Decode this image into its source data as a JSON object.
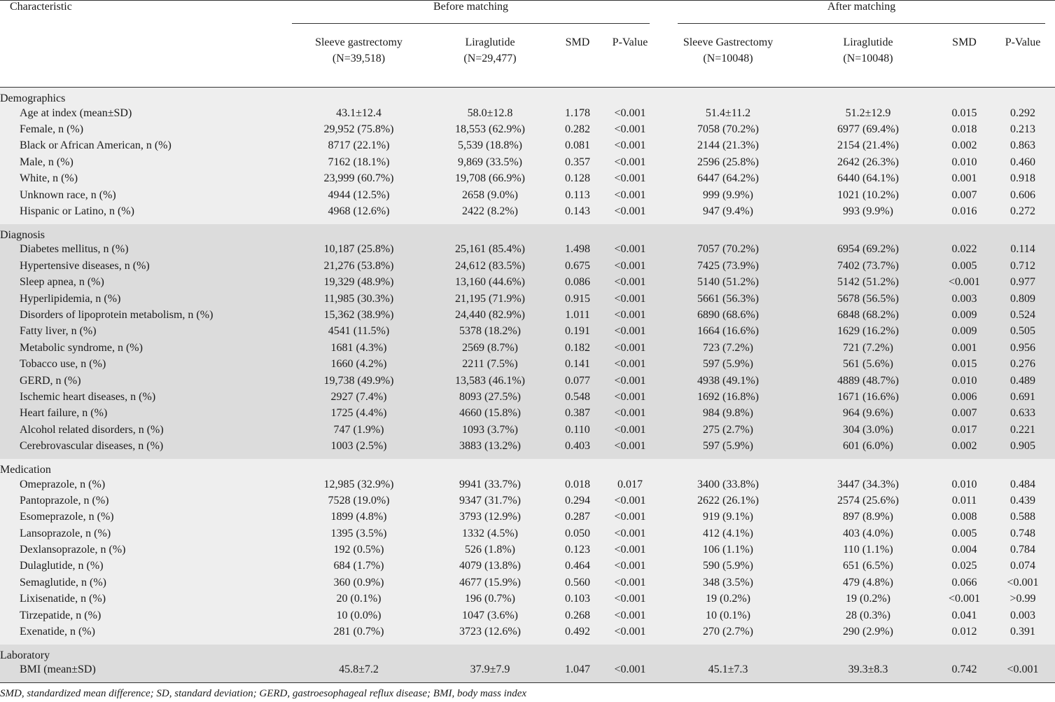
{
  "header": {
    "characteristic": "Characteristic",
    "group_before": "Before matching",
    "group_after": "After matching",
    "columns": [
      {
        "line1": "Sleeve gastrectomy",
        "line2": "(N=39,518)"
      },
      {
        "line1": "Liraglutide",
        "line2": "(N=29,477)"
      },
      {
        "line1": "SMD",
        "line2": ""
      },
      {
        "line1": "P-Value",
        "line2": ""
      },
      {
        "line1": "Sleeve Gastrectomy",
        "line2": "(N=10048)"
      },
      {
        "line1": "Liraglutide",
        "line2": "(N=10048)"
      },
      {
        "line1": "SMD",
        "line2": ""
      },
      {
        "line1": "P-Value",
        "line2": ""
      }
    ]
  },
  "sections": [
    {
      "title": "Demographics",
      "shade": "a",
      "rows": [
        {
          "label": "Age at index (mean±SD)",
          "cells": [
            "43.1±12.4",
            "58.0±12.8",
            "1.178",
            "<0.001",
            "51.4±11.2",
            "51.2±12.9",
            "0.015",
            "0.292"
          ]
        },
        {
          "label": "Female, n (%)",
          "cells": [
            "29,952 (75.8%)",
            "18,553 (62.9%)",
            "0.282",
            "<0.001",
            "7058 (70.2%)",
            "6977 (69.4%)",
            "0.018",
            "0.213"
          ]
        },
        {
          "label": "Black or African American, n (%)",
          "cells": [
            "8717 (22.1%)",
            "5,539 (18.8%)",
            "0.081",
            "<0.001",
            "2144 (21.3%)",
            "2154 (21.4%)",
            "0.002",
            "0.863"
          ]
        },
        {
          "label": "Male, n (%)",
          "cells": [
            "7162 (18.1%)",
            "9,869 (33.5%)",
            "0.357",
            "<0.001",
            "2596 (25.8%)",
            "2642 (26.3%)",
            "0.010",
            "0.460"
          ]
        },
        {
          "label": "White, n (%)",
          "cells": [
            "23,999 (60.7%)",
            "19,708 (66.9%)",
            "0.128",
            "<0.001",
            "6447 (64.2%)",
            "6440 (64.1%)",
            "0.001",
            "0.918"
          ]
        },
        {
          "label": "Unknown race, n (%)",
          "cells": [
            "4944 (12.5%)",
            "2658 (9.0%)",
            "0.113",
            "<0.001",
            "999 (9.9%)",
            "1021 (10.2%)",
            "0.007",
            "0.606"
          ]
        },
        {
          "label": "Hispanic or Latino, n (%)",
          "cells": [
            "4968 (12.6%)",
            "2422 (8.2%)",
            "0.143",
            "<0.001",
            "947 (9.4%)",
            "993 (9.9%)",
            "0.016",
            "0.272"
          ]
        }
      ]
    },
    {
      "title": "Diagnosis",
      "shade": "b",
      "rows": [
        {
          "label": "Diabetes mellitus, n (%)",
          "cells": [
            "10,187 (25.8%)",
            "25,161 (85.4%)",
            "1.498",
            "<0.001",
            "7057 (70.2%)",
            "6954 (69.2%)",
            "0.022",
            "0.114"
          ]
        },
        {
          "label": "Hypertensive diseases, n (%)",
          "cells": [
            "21,276 (53.8%)",
            "24,612 (83.5%)",
            "0.675",
            "<0.001",
            "7425 (73.9%)",
            "7402 (73.7%)",
            "0.005",
            "0.712"
          ]
        },
        {
          "label": "Sleep apnea, n (%)",
          "cells": [
            "19,329 (48.9%)",
            "13,160 (44.6%)",
            "0.086",
            "<0.001",
            "5140 (51.2%)",
            "5142 (51.2%)",
            "<0.001",
            "0.977"
          ]
        },
        {
          "label": "Hyperlipidemia, n (%)",
          "cells": [
            "11,985 (30.3%)",
            "21,195 (71.9%)",
            "0.915",
            "<0.001",
            "5661 (56.3%)",
            "5678 (56.5%)",
            "0.003",
            "0.809"
          ]
        },
        {
          "label": "Disorders of lipoprotein metabolism, n (%)",
          "cells": [
            "15,362 (38.9%)",
            "24,440 (82.9%)",
            "1.011",
            "<0.001",
            "6890 (68.6%)",
            "6848 (68.2%)",
            "0.009",
            "0.524"
          ]
        },
        {
          "label": "Fatty liver, n (%)",
          "cells": [
            "4541 (11.5%)",
            "5378 (18.2%)",
            "0.191",
            "<0.001",
            "1664 (16.6%)",
            "1629 (16.2%)",
            "0.009",
            "0.505"
          ]
        },
        {
          "label": "Metabolic syndrome, n (%)",
          "cells": [
            "1681 (4.3%)",
            "2569 (8.7%)",
            "0.182",
            "<0.001",
            "723 (7.2%)",
            "721 (7.2%)",
            "0.001",
            "0.956"
          ]
        },
        {
          "label": "Tobacco use, n (%)",
          "cells": [
            "1660 (4.2%)",
            "2211 (7.5%)",
            "0.141",
            "<0.001",
            "597 (5.9%)",
            "561 (5.6%)",
            "0.015",
            "0.276"
          ]
        },
        {
          "label": "GERD, n (%)",
          "cells": [
            "19,738 (49.9%)",
            "13,583 (46.1%)",
            "0.077",
            "<0.001",
            "4938 (49.1%)",
            "4889 (48.7%)",
            "0.010",
            "0.489"
          ]
        },
        {
          "label": "Ischemic heart diseases, n (%)",
          "cells": [
            "2927 (7.4%)",
            "8093 (27.5%)",
            "0.548",
            "<0.001",
            "1692 (16.8%)",
            "1671 (16.6%)",
            "0.006",
            "0.691"
          ]
        },
        {
          "label": "Heart failure, n (%)",
          "cells": [
            "1725 (4.4%)",
            "4660 (15.8%)",
            "0.387",
            "<0.001",
            "984 (9.8%)",
            "964 (9.6%)",
            "0.007",
            "0.633"
          ]
        },
        {
          "label": "Alcohol related disorders, n (%)",
          "cells": [
            "747 (1.9%)",
            "1093 (3.7%)",
            "0.110",
            "<0.001",
            "275 (2.7%)",
            "304 (3.0%)",
            "0.017",
            "0.221"
          ]
        },
        {
          "label": "Cerebrovascular diseases, n (%)",
          "cells": [
            "1003 (2.5%)",
            "3883 (13.2%)",
            "0.403",
            "<0.001",
            "597 (5.9%)",
            "601 (6.0%)",
            "0.002",
            "0.905"
          ]
        }
      ]
    },
    {
      "title": "Medication",
      "shade": "a",
      "rows": [
        {
          "label": "Omeprazole, n (%)",
          "cells": [
            "12,985 (32.9%)",
            "9941 (33.7%)",
            "0.018",
            "0.017",
            "3400 (33.8%)",
            "3447 (34.3%)",
            "0.010",
            "0.484"
          ]
        },
        {
          "label": "Pantoprazole, n (%)",
          "cells": [
            "7528 (19.0%)",
            "9347 (31.7%)",
            "0.294",
            "<0.001",
            "2622 (26.1%)",
            "2574 (25.6%)",
            "0.011",
            "0.439"
          ]
        },
        {
          "label": "Esomeprazole, n (%)",
          "cells": [
            "1899 (4.8%)",
            "3793 (12.9%)",
            "0.287",
            "<0.001",
            "919 (9.1%)",
            "897 (8.9%)",
            "0.008",
            "0.588"
          ]
        },
        {
          "label": "Lansoprazole, n (%)",
          "cells": [
            "1395 (3.5%)",
            "1332 (4.5%)",
            "0.050",
            "<0.001",
            "412 (4.1%)",
            "403 (4.0%)",
            "0.005",
            "0.748"
          ]
        },
        {
          "label": "Dexlansoprazole, n (%)",
          "cells": [
            "192 (0.5%)",
            "526 (1.8%)",
            "0.123",
            "<0.001",
            "106 (1.1%)",
            "110 (1.1%)",
            "0.004",
            "0.784"
          ]
        },
        {
          "label": "Dulaglutide, n (%)",
          "cells": [
            "684 (1.7%)",
            "4079 (13.8%)",
            "0.464",
            "<0.001",
            "590 (5.9%)",
            "651 (6.5%)",
            "0.025",
            "0.074"
          ]
        },
        {
          "label": "Semaglutide, n (%)",
          "cells": [
            "360 (0.9%)",
            "4677 (15.9%)",
            "0.560",
            "<0.001",
            "348 (3.5%)",
            "479 (4.8%)",
            "0.066",
            "<0.001"
          ]
        },
        {
          "label": "Lixisenatide, n (%)",
          "cells": [
            "20 (0.1%)",
            "196 (0.7%)",
            "0.103",
            "<0.001",
            "19 (0.2%)",
            "19 (0.2%)",
            "<0.001",
            ">0.99"
          ]
        },
        {
          "label": "Tirzepatide, n (%)",
          "cells": [
            "10 (0.0%)",
            "1047 (3.6%)",
            "0.268",
            "<0.001",
            "10 (0.1%)",
            "28 (0.3%)",
            "0.041",
            "0.003"
          ]
        },
        {
          "label": "Exenatide, n (%)",
          "cells": [
            "281 (0.7%)",
            "3723 (12.6%)",
            "0.492",
            "<0.001",
            "270 (2.7%)",
            "290 (2.9%)",
            "0.012",
            "0.391"
          ]
        }
      ]
    },
    {
      "title": "Laboratory",
      "shade": "b",
      "rows": [
        {
          "label": "BMI (mean±SD)",
          "cells": [
            "45.8±7.2",
            "37.9±7.9",
            "1.047",
            "<0.001",
            "45.1±7.3",
            "39.3±8.3",
            "0.742",
            "<0.001"
          ]
        }
      ]
    }
  ],
  "footnote": "SMD, standardized mean difference; SD, standard deviation; GERD, gastroesophageal reflux disease; BMI, body mass index",
  "colors": {
    "shade_a": "#eeeeee",
    "shade_b": "#dcdcdc",
    "rule": "#333333"
  }
}
